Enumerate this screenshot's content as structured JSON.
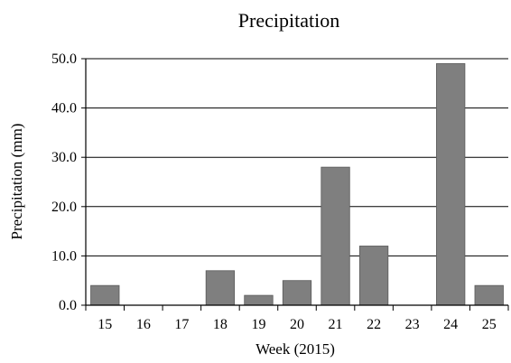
{
  "chart_data": {
    "type": "bar",
    "title": "Precipitation",
    "xlabel": "Week (2015)",
    "ylabel": "Precipitation (mm)",
    "categories": [
      "15",
      "16",
      "17",
      "18",
      "19",
      "20",
      "21",
      "22",
      "23",
      "24",
      "25"
    ],
    "values": [
      4,
      0,
      0,
      7,
      2,
      5,
      28,
      12,
      0,
      49,
      4
    ],
    "ylim": [
      0,
      50
    ],
    "yticks": [
      "0.0",
      "10.0",
      "20.0",
      "30.0",
      "40.0",
      "50.0"
    ],
    "grid": true,
    "legend": "none",
    "colors": {
      "bar": "#7f7f7f",
      "bar_edge": "#5a5a5a",
      "grid": "#000000",
      "axis": "#000000"
    }
  }
}
